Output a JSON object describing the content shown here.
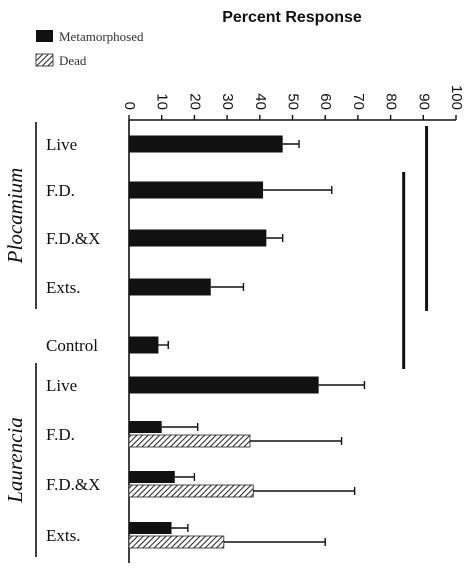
{
  "chart_data": {
    "type": "bar",
    "orientation": "horizontal",
    "title": "Percent Response",
    "xlim": [
      0,
      100
    ],
    "x_ticks": [
      "0",
      "10",
      "20",
      "30",
      "40",
      "50",
      "60",
      "70",
      "80",
      "90",
      "100"
    ],
    "series": [
      {
        "name": "Metamorphosed",
        "fill": "#111111",
        "pattern": "solid"
      },
      {
        "name": "Dead",
        "fill": "#888888",
        "pattern": "hatched"
      }
    ],
    "groups": [
      {
        "name": "Plocamium",
        "categories": [
          "Live",
          "F.D.",
          "F.D.&X",
          "Exts."
        ]
      },
      {
        "name": "",
        "categories": [
          "Control"
        ]
      },
      {
        "name": "Laurencia",
        "categories": [
          "Live",
          "F.D.",
          "F.D.&X",
          "Exts."
        ]
      }
    ],
    "categories": [
      "Live",
      "F.D.",
      "F.D.&X",
      "Exts.",
      "Control",
      "Live",
      "F.D.",
      "F.D.&X",
      "Exts."
    ],
    "bars": [
      {
        "category": "Live",
        "group": "Plocamium",
        "metamorphosed": 47,
        "metamorphosed_err": 5,
        "dead": null,
        "dead_err": null
      },
      {
        "category": "F.D.",
        "group": "Plocamium",
        "metamorphosed": 41,
        "metamorphosed_err": 21,
        "dead": null,
        "dead_err": null
      },
      {
        "category": "F.D.&X",
        "group": "Plocamium",
        "metamorphosed": 42,
        "metamorphosed_err": 5,
        "dead": null,
        "dead_err": null
      },
      {
        "category": "Exts.",
        "group": "Plocamium",
        "metamorphosed": 25,
        "metamorphosed_err": 10,
        "dead": null,
        "dead_err": null
      },
      {
        "category": "Control",
        "group": "",
        "metamorphosed": 9,
        "metamorphosed_err": 3,
        "dead": null,
        "dead_err": null
      },
      {
        "category": "Live",
        "group": "Laurencia",
        "metamorphosed": 58,
        "metamorphosed_err": 14,
        "dead": null,
        "dead_err": null
      },
      {
        "category": "F.D.",
        "group": "Laurencia",
        "metamorphosed": 10,
        "metamorphosed_err": 11,
        "dead": 37,
        "dead_err": 28
      },
      {
        "category": "F.D.&X",
        "group": "Laurencia",
        "metamorphosed": 14,
        "metamorphosed_err": 6,
        "dead": 38,
        "dead_err": 31
      },
      {
        "category": "Exts.",
        "group": "Laurencia",
        "metamorphosed": 13,
        "metamorphosed_err": 5,
        "dead": 29,
        "dead_err": 31
      }
    ],
    "significance_brackets": [
      {
        "x": 91,
        "from_category": 0,
        "to_category": 3
      },
      {
        "x": 84,
        "from_category": 1,
        "to_category": 4
      }
    ],
    "grid": false,
    "legend": "top-left"
  }
}
